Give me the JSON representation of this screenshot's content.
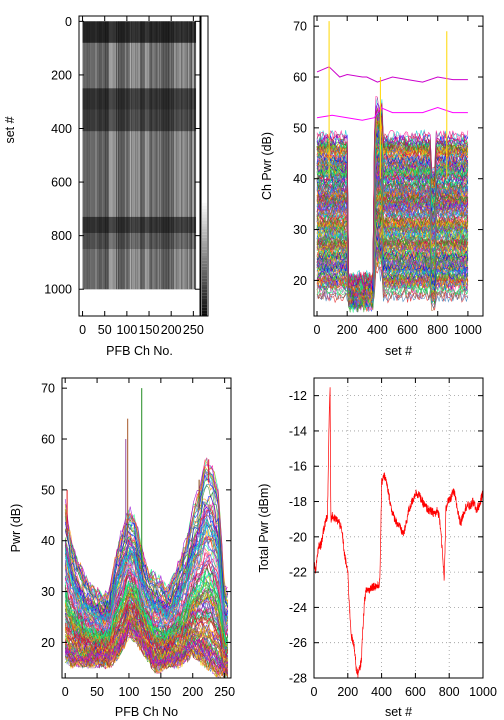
{
  "chart_data": [
    {
      "id": "heatmap",
      "type": "heatmap",
      "title": "",
      "xlabel": "PFB Ch No.",
      "ylabel": "set #",
      "xlim": [
        -8,
        265
      ],
      "ylim": [
        1100,
        -20
      ],
      "xticks": [
        0,
        50,
        100,
        150,
        200,
        250
      ],
      "xtick_labels": [
        "0",
        "50",
        "100",
        "150",
        "200",
        "250"
      ],
      "yticks": [
        0,
        200,
        400,
        600,
        800,
        1000
      ],
      "ytick_labels": [
        "0",
        "200",
        "400",
        "600",
        "800",
        "1000"
      ],
      "data_extent": {
        "channels": [
          0,
          256
        ],
        "sets": [
          0,
          1000
        ]
      },
      "colorbar": true,
      "colormap": "grayscale",
      "grid": false
    },
    {
      "id": "chpwr",
      "type": "line",
      "title": "",
      "xlabel": "set #",
      "ylabel": "Ch Pwr (dB)",
      "xlim": [
        -20,
        1100
      ],
      "ylim": [
        13,
        72
      ],
      "xticks": [
        0,
        200,
        400,
        600,
        800,
        1000
      ],
      "xtick_labels": [
        "0",
        "200",
        "400",
        "600",
        "800",
        "1000"
      ],
      "yticks": [
        20,
        30,
        40,
        50,
        60,
        70
      ],
      "ytick_labels": [
        "20",
        "30",
        "40",
        "50",
        "60",
        "70"
      ],
      "grid": false,
      "series_count": 256,
      "annotation_series": [
        {
          "name": "",
          "color": "#cc00cc",
          "points": [
            [
              0,
              61
            ],
            [
              80,
              62
            ],
            [
              150,
              60
            ],
            [
              200,
              60.5
            ],
            [
              300,
              60
            ],
            [
              330,
              60
            ],
            [
              400,
              59
            ],
            [
              500,
              60
            ],
            [
              600,
              59.5
            ],
            [
              700,
              59
            ],
            [
              800,
              60
            ],
            [
              900,
              59.5
            ],
            [
              1000,
              59.5
            ]
          ]
        },
        {
          "name": "",
          "color": "#ff00ff",
          "points": [
            [
              0,
              52
            ],
            [
              100,
              52.5
            ],
            [
              200,
              52
            ],
            [
              300,
              51.5
            ],
            [
              380,
              52
            ],
            [
              420,
              54
            ],
            [
              500,
              53
            ],
            [
              600,
              53
            ],
            [
              700,
              53
            ],
            [
              800,
              54
            ],
            [
              900,
              53
            ],
            [
              1000,
              53
            ]
          ]
        }
      ]
    },
    {
      "id": "pwr",
      "type": "line",
      "title": "",
      "xlabel": "PFB Ch No",
      "ylabel": "Pwr (dB)",
      "xlim": [
        -5,
        260
      ],
      "ylim": [
        13,
        72
      ],
      "xticks": [
        0,
        50,
        100,
        150,
        200,
        250
      ],
      "xtick_labels": [
        "0",
        "50",
        "100",
        "150",
        "200",
        "250"
      ],
      "yticks": [
        20,
        30,
        40,
        50,
        60,
        70
      ],
      "ytick_labels": [
        "20",
        "30",
        "40",
        "50",
        "60",
        "70"
      ],
      "grid": false,
      "series_count": 1000,
      "upper_envelope": [
        [
          0,
          47
        ],
        [
          10,
          40
        ],
        [
          20,
          36
        ],
        [
          30,
          33
        ],
        [
          40,
          31
        ],
        [
          50,
          30
        ],
        [
          60,
          29
        ],
        [
          70,
          30
        ],
        [
          80,
          38
        ],
        [
          90,
          42
        ],
        [
          100,
          46
        ],
        [
          110,
          44
        ],
        [
          120,
          38
        ],
        [
          130,
          34
        ],
        [
          140,
          33
        ],
        [
          150,
          32
        ],
        [
          160,
          30
        ],
        [
          170,
          33
        ],
        [
          180,
          36
        ],
        [
          190,
          40
        ],
        [
          200,
          46
        ],
        [
          210,
          50
        ],
        [
          220,
          56
        ],
        [
          230,
          55
        ],
        [
          240,
          50
        ],
        [
          250,
          30
        ]
      ],
      "lower_envelope": [
        [
          0,
          17
        ],
        [
          10,
          16
        ],
        [
          20,
          16
        ],
        [
          30,
          16
        ],
        [
          40,
          16
        ],
        [
          50,
          16
        ],
        [
          60,
          16
        ],
        [
          70,
          16
        ],
        [
          80,
          17
        ],
        [
          90,
          19
        ],
        [
          100,
          22
        ],
        [
          110,
          21
        ],
        [
          120,
          19
        ],
        [
          130,
          17
        ],
        [
          140,
          15
        ],
        [
          150,
          15
        ],
        [
          160,
          16
        ],
        [
          170,
          16
        ],
        [
          180,
          16
        ],
        [
          190,
          17
        ],
        [
          200,
          18
        ],
        [
          210,
          17
        ],
        [
          220,
          16
        ],
        [
          230,
          15
        ],
        [
          240,
          14
        ],
        [
          250,
          14
        ]
      ],
      "spikes": [
        [
          3,
          50
        ],
        [
          95,
          60
        ],
        [
          98,
          64
        ],
        [
          120,
          70
        ],
        [
          210,
          52
        ],
        [
          225,
          56
        ]
      ]
    },
    {
      "id": "totpwr",
      "type": "line",
      "title": "",
      "xlabel": "set #",
      "ylabel": "Total Pwr (dBm)",
      "xlim": [
        0,
        1000
      ],
      "ylim": [
        -28,
        -11
      ],
      "xticks": [
        0,
        200,
        400,
        600,
        800,
        1000
      ],
      "xtick_labels": [
        "0",
        "200",
        "400",
        "600",
        "800",
        "1000"
      ],
      "yticks": [
        -28,
        -26,
        -24,
        -22,
        -20,
        -18,
        -16,
        -14,
        -12
      ],
      "ytick_labels": [
        "-28",
        "-26",
        "-24",
        "-22",
        "-20",
        "-18",
        "-16",
        "-14",
        "-12"
      ],
      "grid": true,
      "series": [
        {
          "name": "",
          "color": "#ff0000",
          "points": [
            [
              0,
              -21.5
            ],
            [
              10,
              -22
            ],
            [
              20,
              -21
            ],
            [
              30,
              -20.5
            ],
            [
              40,
              -20.5
            ],
            [
              50,
              -20
            ],
            [
              60,
              -19.5
            ],
            [
              70,
              -19
            ],
            [
              80,
              -18.8
            ],
            [
              90,
              -13
            ],
            [
              95,
              -11.6
            ],
            [
              100,
              -19
            ],
            [
              110,
              -18.8
            ],
            [
              120,
              -19
            ],
            [
              130,
              -19
            ],
            [
              150,
              -19.2
            ],
            [
              160,
              -19.5
            ],
            [
              170,
              -20
            ],
            [
              180,
              -21
            ],
            [
              190,
              -21.5
            ],
            [
              200,
              -22
            ],
            [
              210,
              -24
            ],
            [
              220,
              -25.5
            ],
            [
              230,
              -26
            ],
            [
              240,
              -26.3
            ],
            [
              250,
              -27.5
            ],
            [
              260,
              -27.8
            ],
            [
              270,
              -27.5
            ],
            [
              280,
              -27
            ],
            [
              290,
              -25
            ],
            [
              300,
              -23.5
            ],
            [
              310,
              -23
            ],
            [
              320,
              -23
            ],
            [
              330,
              -23
            ],
            [
              340,
              -22.8
            ],
            [
              350,
              -22.8
            ],
            [
              360,
              -22.8
            ],
            [
              380,
              -22.8
            ],
            [
              390,
              -22.5
            ],
            [
              400,
              -17
            ],
            [
              410,
              -16.5
            ],
            [
              420,
              -16.6
            ],
            [
              430,
              -17
            ],
            [
              440,
              -17.5
            ],
            [
              450,
              -18
            ],
            [
              460,
              -18.5
            ],
            [
              470,
              -18.8
            ],
            [
              480,
              -19
            ],
            [
              490,
              -19.2
            ],
            [
              500,
              -19.3
            ],
            [
              510,
              -19.5
            ],
            [
              520,
              -19.7
            ],
            [
              530,
              -19.8
            ],
            [
              540,
              -19.5
            ],
            [
              550,
              -19
            ],
            [
              560,
              -18.5
            ],
            [
              570,
              -18.3
            ],
            [
              580,
              -18
            ],
            [
              590,
              -17.8
            ],
            [
              600,
              -17.5
            ],
            [
              620,
              -17.6
            ],
            [
              640,
              -18
            ],
            [
              660,
              -18.3
            ],
            [
              680,
              -18.5
            ],
            [
              700,
              -18.6
            ],
            [
              720,
              -18.7
            ],
            [
              730,
              -18.5
            ],
            [
              740,
              -18.8
            ],
            [
              750,
              -19.5
            ],
            [
              760,
              -21
            ],
            [
              770,
              -22.3
            ],
            [
              775,
              -21
            ],
            [
              780,
              -18.5
            ],
            [
              790,
              -18
            ],
            [
              800,
              -18
            ],
            [
              810,
              -17.8
            ],
            [
              820,
              -17.5
            ],
            [
              830,
              -17.5
            ],
            [
              840,
              -18
            ],
            [
              850,
              -18.5
            ],
            [
              860,
              -19
            ],
            [
              870,
              -19.2
            ],
            [
              880,
              -18.8
            ],
            [
              890,
              -18.5
            ],
            [
              900,
              -18.3
            ],
            [
              910,
              -18.2
            ],
            [
              920,
              -18.3
            ],
            [
              930,
              -18.2
            ],
            [
              940,
              -18
            ],
            [
              950,
              -18.2
            ],
            [
              960,
              -18.5
            ],
            [
              970,
              -18.3
            ],
            [
              980,
              -18.2
            ],
            [
              990,
              -17.8
            ],
            [
              1000,
              -17.5
            ]
          ]
        }
      ]
    }
  ]
}
